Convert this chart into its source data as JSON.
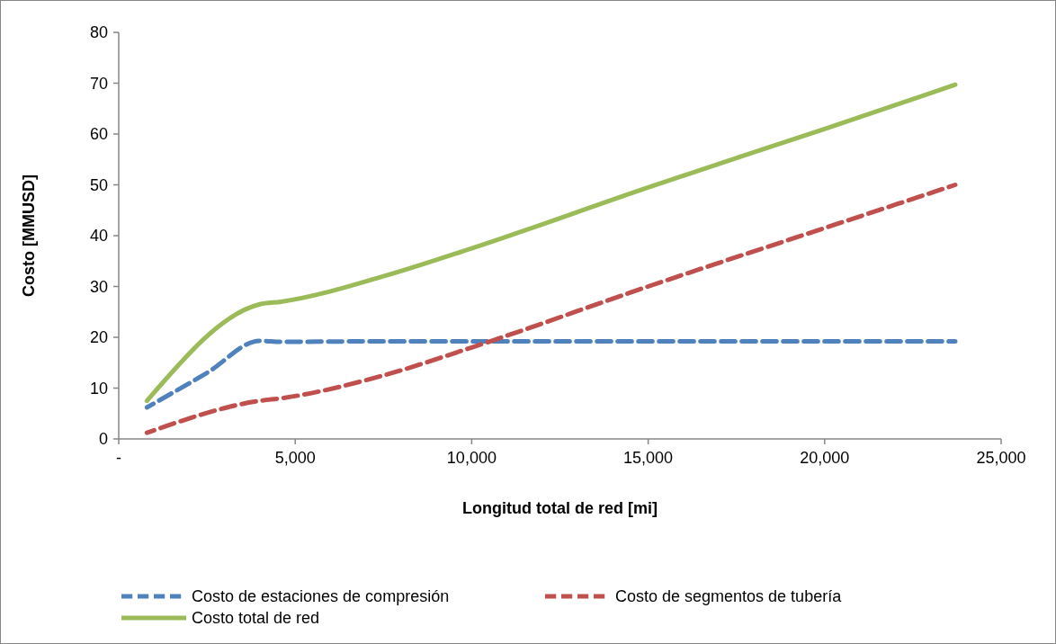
{
  "chart_data": {
    "type": "line",
    "xlabel": "Longitud total de red [mi]",
    "ylabel": "Costo [MMUSD]",
    "xlim": [
      0,
      25000
    ],
    "xticks": [
      {
        "value": 0,
        "label": "-"
      },
      {
        "value": 5000,
        "label": "5,000"
      },
      {
        "value": 10000,
        "label": "10,000"
      },
      {
        "value": 15000,
        "label": "15,000"
      },
      {
        "value": 20000,
        "label": "20,000"
      },
      {
        "value": 25000,
        "label": "25,000"
      }
    ],
    "ylim": [
      0,
      80
    ],
    "yticks": [
      0,
      10,
      20,
      30,
      40,
      50,
      60,
      70,
      80
    ],
    "grid": false,
    "legend": "bottom",
    "series": [
      {
        "name": "Costo de estaciones de compresión",
        "color": "#4f81bd",
        "line_style": "dashed",
        "x": [
          800,
          2500,
          4000,
          4600,
          7000,
          15000,
          23700
        ],
        "values": [
          6.2,
          13,
          19.3,
          19.1,
          19.2,
          19.2,
          19.2
        ]
      },
      {
        "name": "Costo de segmentos de tubería",
        "color": "#c0504d",
        "line_style": "dashed",
        "x": [
          800,
          4000,
          4600,
          7500,
          10000,
          15000,
          20000,
          23700
        ],
        "values": [
          1.2,
          7.5,
          8,
          12.5,
          18,
          30,
          41.5,
          50
        ]
      },
      {
        "name": "Costo total de red",
        "color": "#9bbb59",
        "line_style": "solid",
        "x": [
          800,
          4000,
          4600,
          7500,
          10000,
          15000,
          20000,
          23700
        ],
        "values": [
          7.5,
          26.5,
          27,
          32,
          37.5,
          49.5,
          61,
          69.7
        ]
      }
    ]
  }
}
